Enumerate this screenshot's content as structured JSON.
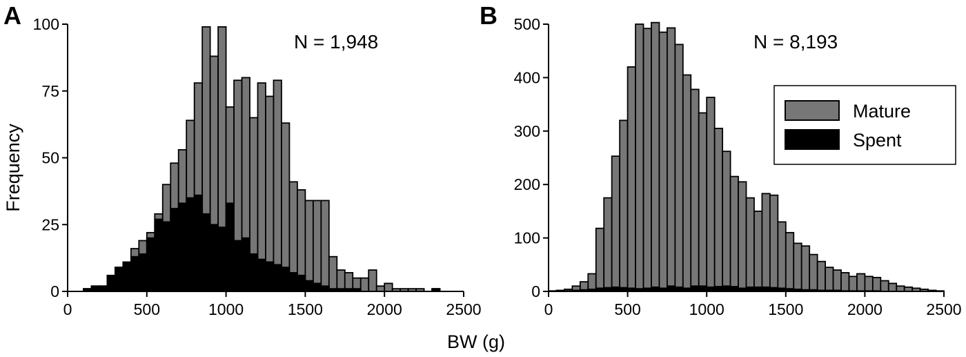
{
  "colors": {
    "mature": "#777777",
    "spent": "#000000",
    "stroke": "#000000",
    "background": "#ffffff"
  },
  "shared_xlabel": "BW (g)",
  "chart_data": [
    {
      "type": "bar",
      "panel": "A",
      "annotation": "N = 1,948",
      "ylabel": "Frequency",
      "xlabel": "",
      "xlim": [
        0,
        2500
      ],
      "ylim": [
        0,
        100
      ],
      "xticks": [
        0,
        500,
        1000,
        1500,
        2000,
        2500
      ],
      "yticks": [
        0,
        25,
        50,
        75,
        100
      ],
      "bin_width": 50,
      "bin_starts": [
        100,
        150,
        200,
        250,
        300,
        350,
        400,
        450,
        500,
        550,
        600,
        650,
        700,
        750,
        800,
        850,
        900,
        950,
        1000,
        1050,
        1100,
        1150,
        1200,
        1250,
        1300,
        1350,
        1400,
        1450,
        1500,
        1550,
        1600,
        1650,
        1700,
        1750,
        1800,
        1850,
        1900,
        1950,
        2000,
        2050,
        2100,
        2150,
        2200,
        2250,
        2300,
        2350
      ],
      "series": [
        {
          "name": "Mature",
          "values": [
            1,
            2,
            2,
            4,
            9,
            10,
            16,
            19,
            22,
            29,
            40,
            48,
            53,
            64,
            78,
            99,
            88,
            99,
            69,
            79,
            80,
            65,
            78,
            73,
            79,
            63,
            41,
            38,
            34,
            34,
            34,
            13,
            8,
            7,
            5,
            5,
            8,
            2,
            3,
            1,
            1,
            1,
            1,
            0,
            1,
            0
          ]
        },
        {
          "name": "Spent",
          "values": [
            1,
            2,
            2,
            6,
            9,
            11,
            13,
            14,
            20,
            27,
            26,
            31,
            33,
            35,
            36,
            29,
            25,
            24,
            33,
            19,
            20,
            14,
            12,
            11,
            10,
            9,
            7,
            6,
            4,
            3,
            2,
            1,
            1,
            1,
            1,
            0,
            0,
            0,
            0,
            0,
            0,
            0,
            0,
            0,
            1,
            0
          ]
        }
      ]
    },
    {
      "type": "bar",
      "panel": "B",
      "annotation": "N = 8,193",
      "ylabel": "",
      "xlabel": "",
      "xlim": [
        0,
        2500
      ],
      "ylim": [
        0,
        500
      ],
      "xticks": [
        0,
        500,
        1000,
        1500,
        2000,
        2500
      ],
      "yticks": [
        0,
        100,
        200,
        300,
        400,
        500
      ],
      "legend": {
        "position": "right",
        "entries": [
          "Mature",
          "Spent"
        ]
      },
      "bin_width": 50,
      "bin_starts": [
        0,
        50,
        100,
        150,
        200,
        250,
        300,
        350,
        400,
        450,
        500,
        550,
        600,
        650,
        700,
        750,
        800,
        850,
        900,
        950,
        1000,
        1050,
        1100,
        1150,
        1200,
        1250,
        1300,
        1350,
        1400,
        1450,
        1500,
        1550,
        1600,
        1650,
        1700,
        1750,
        1800,
        1850,
        1900,
        1950,
        2000,
        2050,
        2100,
        2150,
        2200,
        2250,
        2300,
        2350,
        2400,
        2450
      ],
      "series": [
        {
          "name": "Mature",
          "values": [
            1,
            2,
            4,
            10,
            18,
            33,
            118,
            175,
            253,
            320,
            420,
            500,
            492,
            503,
            485,
            493,
            462,
            405,
            378,
            334,
            363,
            305,
            262,
            215,
            205,
            175,
            150,
            183,
            180,
            130,
            110,
            90,
            85,
            69,
            56,
            45,
            40,
            35,
            28,
            33,
            28,
            26,
            20,
            15,
            10,
            8,
            6,
            4,
            2,
            1
          ]
        },
        {
          "name": "Spent",
          "values": [
            0,
            0,
            1,
            2,
            3,
            4,
            6,
            7,
            8,
            7,
            6,
            5,
            6,
            8,
            6,
            10,
            8,
            6,
            10,
            10,
            8,
            9,
            10,
            9,
            6,
            8,
            8,
            8,
            7,
            6,
            5,
            4,
            3,
            3,
            2,
            2,
            2,
            1,
            1,
            1,
            1,
            1,
            0,
            0,
            0,
            0,
            0,
            0,
            0,
            0
          ]
        }
      ]
    }
  ]
}
